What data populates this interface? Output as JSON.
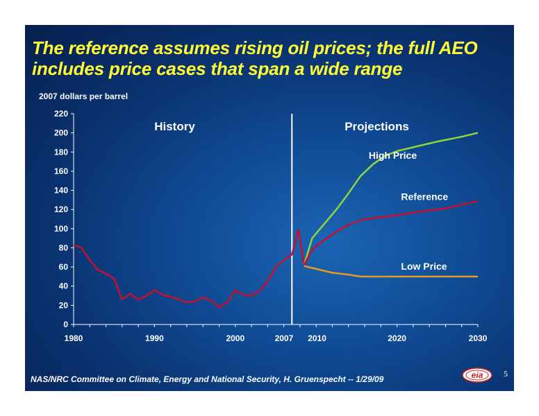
{
  "slide": {
    "title": "The reference assumes rising oil prices; the full AEO includes price cases that span a wide range",
    "footer": "NAS/NRC Committee on Climate, Energy and National Security, H. Gruenspecht -- 1/29/09",
    "page_number": "5",
    "logo_text": "eia"
  },
  "colors": {
    "title": "#ffff33",
    "history": "#c8102e",
    "reference": "#c8102e",
    "high_price": "#8fd63a",
    "low_price": "#e89a1a",
    "divider": "#ffffff"
  },
  "chart_data": {
    "type": "line",
    "ylabel": "2007 dollars per barrel",
    "ylim": [
      0,
      220
    ],
    "yticks": [
      0,
      20,
      40,
      60,
      80,
      100,
      120,
      140,
      160,
      180,
      200,
      220
    ],
    "xlim": [
      1980,
      2030
    ],
    "xticks": [
      {
        "value": 1980,
        "label": "1980"
      },
      {
        "value": 1990,
        "label": "1990"
      },
      {
        "value": 2000,
        "label": "2000"
      },
      {
        "value": 2007,
        "label": "2007"
      },
      {
        "value": 2010,
        "label": "2010"
      },
      {
        "value": 2020,
        "label": "2020"
      },
      {
        "value": 2030,
        "label": "2030"
      }
    ],
    "divider_at": 2007,
    "regions": [
      {
        "label": "History",
        "x_center": 1992.5
      },
      {
        "label": "Projections",
        "x_center": 2017.5
      }
    ],
    "series": [
      {
        "name": "History",
        "color_key": "history",
        "points": [
          [
            1980,
            83
          ],
          [
            1981,
            80
          ],
          [
            1982,
            67
          ],
          [
            1983,
            57
          ],
          [
            1984,
            53
          ],
          [
            1985,
            48
          ],
          [
            1986,
            26
          ],
          [
            1987,
            32
          ],
          [
            1988,
            26
          ],
          [
            1989,
            30
          ],
          [
            1990,
            36
          ],
          [
            1991,
            31
          ],
          [
            1992,
            29
          ],
          [
            1993,
            26
          ],
          [
            1994,
            23
          ],
          [
            1995,
            24
          ],
          [
            1996,
            28
          ],
          [
            1997,
            25
          ],
          [
            1998,
            18
          ],
          [
            1999,
            23
          ],
          [
            2000,
            36
          ],
          [
            2001,
            31
          ],
          [
            2002,
            30
          ],
          [
            2003,
            35
          ],
          [
            2004,
            45
          ],
          [
            2005,
            60
          ],
          [
            2006,
            67
          ],
          [
            2007,
            73
          ],
          [
            2007.8,
            99
          ],
          [
            2008.5,
            62
          ]
        ]
      },
      {
        "name": "High Price",
        "color_key": "high_price",
        "label_at": [
          2016.5,
          173
        ],
        "points": [
          [
            2008.5,
            62
          ],
          [
            2009.5,
            90
          ],
          [
            2011,
            105
          ],
          [
            2012.5,
            120
          ],
          [
            2014,
            137
          ],
          [
            2015.5,
            155
          ],
          [
            2017,
            167
          ],
          [
            2018.5,
            176
          ],
          [
            2020,
            181
          ],
          [
            2022,
            185
          ],
          [
            2025,
            191
          ],
          [
            2028,
            196
          ],
          [
            2030,
            200
          ]
        ]
      },
      {
        "name": "Reference",
        "color_key": "reference",
        "label_at": [
          2020.5,
          130
        ],
        "points": [
          [
            2008.5,
            62
          ],
          [
            2009.5,
            78
          ],
          [
            2011,
            88
          ],
          [
            2012.5,
            97
          ],
          [
            2014,
            104
          ],
          [
            2015.5,
            109
          ],
          [
            2017,
            111
          ],
          [
            2020,
            114
          ],
          [
            2023,
            118
          ],
          [
            2026,
            121
          ],
          [
            2028,
            125
          ],
          [
            2030,
            129
          ]
        ]
      },
      {
        "name": "Low Price",
        "color_key": "low_price",
        "label_at": [
          2020.5,
          57
        ],
        "points": [
          [
            2008.5,
            61
          ],
          [
            2010,
            58
          ],
          [
            2012,
            54
          ],
          [
            2014,
            52
          ],
          [
            2015.5,
            50
          ],
          [
            2017,
            50
          ],
          [
            2020,
            50
          ],
          [
            2025,
            50
          ],
          [
            2030,
            50
          ]
        ]
      }
    ]
  }
}
